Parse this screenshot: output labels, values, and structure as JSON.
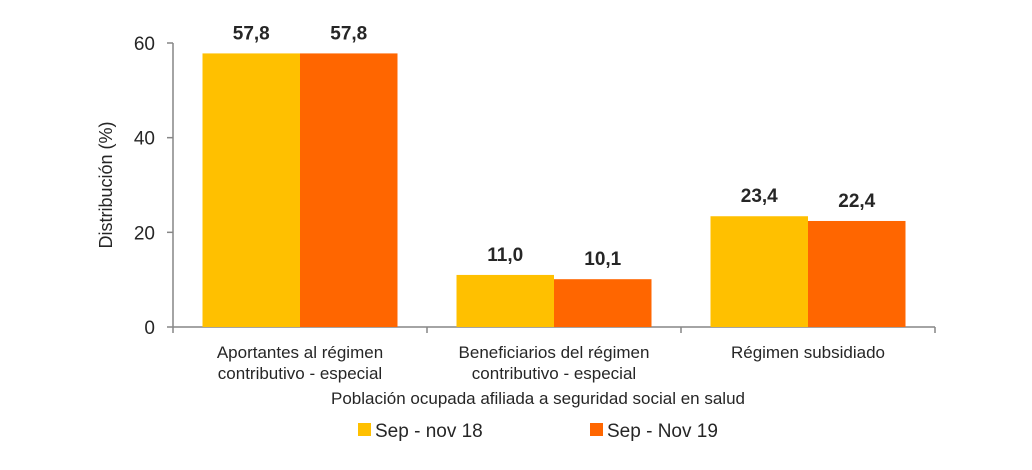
{
  "chart_data": {
    "type": "bar",
    "title": "",
    "ylabel": "Distribución (%)",
    "xlabel": "Población ocupada afiliada a seguridad social en salud",
    "ylim": [
      0,
      60
    ],
    "yticks": [
      "0",
      "20",
      "40",
      "60"
    ],
    "ytick_values": [
      0,
      20,
      40,
      60
    ],
    "categories": [
      [
        "Aportantes al régimen",
        "contributivo - especial"
      ],
      [
        "Beneficiarios del régimen",
        "contributivo - especial"
      ],
      [
        "Régimen subsidiado"
      ]
    ],
    "series": [
      {
        "name": "Sep - nov 18",
        "color": "#FFC000",
        "values": [
          57.8,
          11.0,
          23.4
        ],
        "labels": [
          "57,8",
          "11,0",
          "23,4"
        ]
      },
      {
        "name": "Sep - Nov 19",
        "color": "#FF6600",
        "values": [
          57.8,
          10.1,
          22.4
        ],
        "labels": [
          "57,8",
          "10,1",
          "22,4"
        ]
      }
    ],
    "legend": "bottom",
    "grid": false
  }
}
